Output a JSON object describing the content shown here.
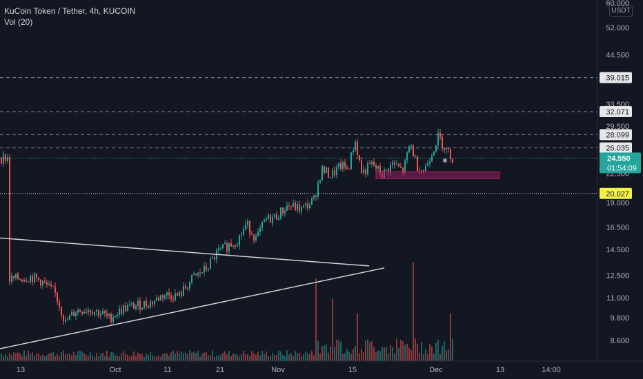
{
  "legend": {
    "symbol_line": "KuCoin Token / Tether, 4h, KUCOIN",
    "volume_line": "Vol (20)"
  },
  "currency": "USDT",
  "colors": {
    "background": "#131722",
    "up": "#26a69a",
    "down": "#ef5350",
    "axis_text": "#b2b5be",
    "line": "#d1d4dc",
    "rect": "#8e1f5f"
  },
  "chart_data": {
    "type": "candlestick",
    "symbol": "KuCoin Token / Tether",
    "interval": "4h",
    "exchange": "KUCOIN",
    "y_scale": "log",
    "ylim": [
      7.8,
      61.0
    ],
    "y_ticks": [
      "60.000",
      "52.000",
      "44.500",
      "33.500",
      "29.500",
      "22.500",
      "19.000",
      "16.500",
      "14.500",
      "12.500",
      "11.000",
      "9.800",
      "8.600"
    ],
    "x_ticks": [
      "13",
      "Oct",
      "11",
      "21",
      "Nov",
      "15",
      "Dec",
      "13",
      "14:00"
    ],
    "price_labels": [
      {
        "text": "39.015",
        "value": 39.015,
        "style": "level"
      },
      {
        "text": "32.071",
        "value": 32.071,
        "style": "level"
      },
      {
        "text": "28.099",
        "value": 28.099,
        "style": "level"
      },
      {
        "text": "26.035",
        "value": 26.035,
        "style": "level"
      },
      {
        "text": "20.027",
        "value": 20.027,
        "style": "highlight"
      }
    ],
    "last_price": {
      "value": "24.550",
      "countdown": "01:54:09"
    },
    "horizontal_levels": [
      39.015,
      32.071,
      28.099,
      26.035,
      20.027
    ],
    "candle_points": [
      [
        13.0,
        12.2
      ],
      [
        45.0,
        12.4
      ],
      [
        60.0,
        12.1
      ],
      [
        80.0,
        11.3
      ],
      [
        88.0,
        10.4
      ],
      [
        95.0,
        9.5
      ],
      [
        110.0,
        10.2
      ],
      [
        130.0,
        10.3
      ],
      [
        150.0,
        10.0
      ],
      [
        158.0,
        9.75
      ],
      [
        180.0,
        10.35
      ],
      [
        220.0,
        10.7
      ],
      [
        238.0,
        11.2
      ],
      [
        260.0,
        11.1
      ],
      [
        280.0,
        12.3
      ],
      [
        300.0,
        13.0
      ],
      [
        315.0,
        14.2
      ],
      [
        332.0,
        14.9
      ],
      [
        345.0,
        15.3
      ],
      [
        358.0,
        16.8
      ],
      [
        372.0,
        15.4
      ],
      [
        385.0,
        17.2
      ],
      [
        400.0,
        17.5
      ],
      [
        418.0,
        18.7
      ],
      [
        438.0,
        18.3
      ],
      [
        455.0,
        19.2
      ],
      [
        467.0,
        23.0
      ],
      [
        480.0,
        22.2
      ],
      [
        495.0,
        23.5
      ],
      [
        505.0,
        23.0
      ],
      [
        515.0,
        27.2
      ],
      [
        525.0,
        22.5
      ],
      [
        540.0,
        23.7
      ],
      [
        555.0,
        22.3
      ],
      [
        570.0,
        23.8
      ],
      [
        585.0,
        22.7
      ],
      [
        595.0,
        26.8
      ],
      [
        605.0,
        23.5
      ],
      [
        615.0,
        22.8
      ],
      [
        625.0,
        25.1
      ],
      [
        636.0,
        27.8
      ],
      [
        646.0,
        26.0
      ],
      [
        656.0,
        24.55
      ]
    ],
    "zone": {
      "start_x": 545,
      "end_x": 724,
      "top": 22.7,
      "bottom": 21.8
    },
    "trendlines": [
      {
        "from": [
          "0",
          15.5
        ],
        "to": [
          "535",
          13.2
        ]
      },
      {
        "from": [
          "0",
          8.2
        ],
        "to": [
          "557",
          13.05
        ]
      }
    ],
    "volume_peaks": [
      [
        458.0,
        0.6
      ],
      [
        480.0,
        0.45
      ],
      [
        517.0,
        0.35
      ],
      [
        599.0,
        0.72
      ],
      [
        651.0,
        0.35
      ]
    ],
    "marker_dot": {
      "x": 645,
      "y": 24.2
    }
  }
}
